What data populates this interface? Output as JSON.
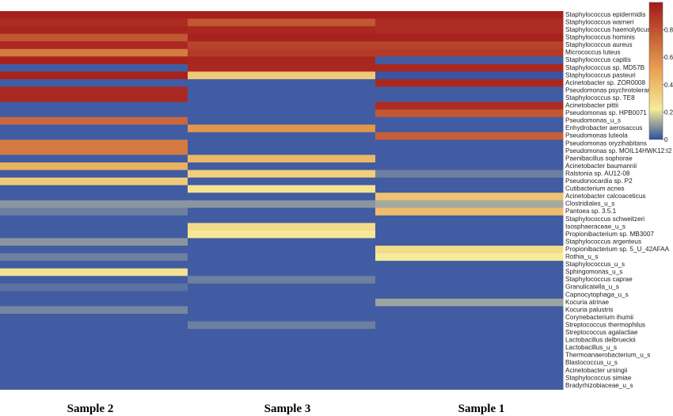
{
  "chart_data": {
    "type": "heatmap",
    "columns": [
      "Sample 2",
      "Sample 3",
      "Sample 1"
    ],
    "rows": [
      "Staphylococcus epidermidis",
      "Staphylococcus warneri",
      "Staphylococcus haemolyticus",
      "Staphylococcus hominis",
      "Staphylococcus aureus",
      "Micrococcus luteus",
      "Staphylococcus capitis",
      "Staphylococcus sp. MD57B",
      "Staphylococcus pasteuri",
      "Acinetobacter sp. ZOR0008",
      "Pseudomonas psychrotolerans",
      "Staphylococcus sp. TE8",
      "Acinetobacter pittii",
      "Pseudomonas sp. HPB0071",
      "Pseudomonas_u_s",
      "Enhydrobacter aerosaccus",
      "Pseudomonas luteola",
      "Pseudomonas oryzihabitans",
      "Pseudomonas sp. MOIL14HWK12:I2",
      "Paenibacillus sophorae",
      "Acinetobacter baumannii",
      "Ralstonia sp. AU12-08",
      "Pseudonocardia sp. P2",
      "Cutibacterium acnes",
      "Acinetobacter calcoaceticus",
      "Clostridiales_u_s",
      "Pantoea sp. 3.5.1",
      "Staphylococcus schweitzeri",
      "Isosphaeraceae_u_s",
      "Propionibacterium sp. MB3007",
      "Staphylococcus argenteus",
      "Propionibacterium sp. 5_U_42AFAA",
      "Rothia_u_s",
      "Staphylococcus_u_s",
      "Sphingomonas_u_s",
      "Staphylococcus caprae",
      "Granulicatella_u_s",
      "Capnocytophaga_u_s",
      "Kocuria atrinae",
      "Kocuria palustris",
      "Corynebacterium ihumii",
      "Streptococcus thermophilus",
      "Streptococcus agalactiae",
      "Lactobacillus delbrueckii",
      "Lactobacillus_u_s",
      "Thermoanaerobacterium_u_s",
      "Blastococcus_u_s",
      "Acinetobacter ursingii",
      "Staphylococcus simiae",
      "Bradyrhizobiaceae_u_s"
    ],
    "values": [
      [
        0.98,
        0.98,
        0.98
      ],
      [
        0.93,
        0.78,
        0.93
      ],
      [
        0.96,
        0.95,
        0.93
      ],
      [
        0.78,
        0.97,
        0.97
      ],
      [
        0.95,
        0.85,
        0.85
      ],
      [
        0.65,
        0.88,
        0.88
      ],
      [
        0.97,
        0.96,
        0.02
      ],
      [
        0.02,
        0.95,
        0.95
      ],
      [
        0.97,
        0.35,
        0.01
      ],
      [
        0.02,
        0.02,
        0.95
      ],
      [
        0.95,
        0.02,
        0.02
      ],
      [
        0.95,
        0.02,
        0.02
      ],
      [
        0.02,
        0.02,
        0.93
      ],
      [
        0.02,
        0.02,
        0.78
      ],
      [
        0.72,
        0.02,
        0.02
      ],
      [
        0.02,
        0.55,
        0.02
      ],
      [
        0.02,
        0.02,
        0.75
      ],
      [
        0.65,
        0.02,
        0.02
      ],
      [
        0.65,
        0.02,
        0.02
      ],
      [
        0.02,
        0.42,
        0.02
      ],
      [
        0.45,
        0.02,
        0.02
      ],
      [
        0.02,
        0.33,
        0.07
      ],
      [
        0.35,
        0.02,
        0.02
      ],
      [
        0.02,
        0.25,
        0.02
      ],
      [
        0.02,
        0.02,
        0.38
      ],
      [
        0.1,
        0.1,
        0.13
      ],
      [
        0.07,
        0.02,
        0.4
      ],
      [
        0.02,
        0.02,
        0.02
      ],
      [
        0.02,
        0.28,
        0.02
      ],
      [
        0.02,
        0.23,
        0.02
      ],
      [
        0.1,
        0.02,
        0.02
      ],
      [
        0.02,
        0.02,
        0.28
      ],
      [
        0.07,
        0.02,
        0.22
      ],
      [
        0.02,
        0.02,
        0.02
      ],
      [
        0.25,
        0.02,
        0.02
      ],
      [
        0.02,
        0.07,
        0.02
      ],
      [
        0.05,
        0.02,
        0.02
      ],
      [
        0.02,
        0.02,
        0.02
      ],
      [
        0.02,
        0.02,
        0.12
      ],
      [
        0.08,
        0.02,
        0.02
      ],
      [
        0.02,
        0.02,
        0.02
      ],
      [
        0.02,
        0.07,
        0.02
      ],
      [
        0.02,
        0.02,
        0.02
      ],
      [
        0.02,
        0.02,
        0.02
      ],
      [
        0.02,
        0.02,
        0.02
      ],
      [
        0.02,
        0.02,
        0.02
      ],
      [
        0.02,
        0.02,
        0.02
      ],
      [
        0.02,
        0.02,
        0.02
      ],
      [
        0.02,
        0.02,
        0.02
      ],
      [
        0.02,
        0.02,
        0.02
      ]
    ],
    "colorbar": {
      "min": 0,
      "max": 1,
      "ticks": [
        0,
        0.2,
        0.4,
        0.6,
        0.8
      ],
      "tick_labels": [
        "0",
        "0.2",
        "0.4",
        "0.6",
        "0.8"
      ],
      "colors": [
        "#2f4ea3",
        "#f5eb9a",
        "#e8a453",
        "#a31a1a"
      ],
      "placement": "right"
    }
  }
}
